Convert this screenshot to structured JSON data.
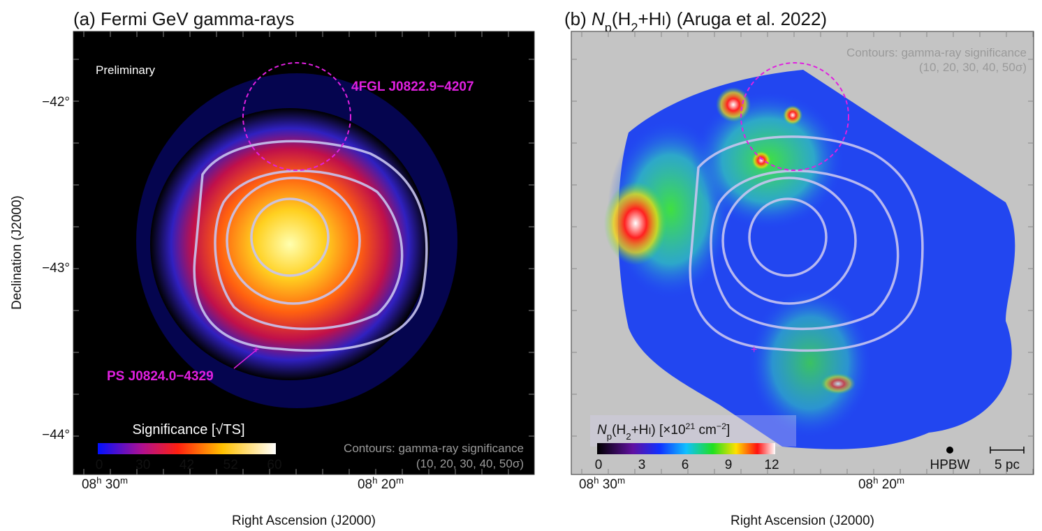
{
  "panels": [
    {
      "title": "(a) Fermi GeV gamma-rays",
      "watermark": "Preliminary",
      "sources": [
        "4FGL J0822.9−4207",
        "PS J0824.0−4329"
      ],
      "colorbar": {
        "title": "Significance [√TS]",
        "ticks": [
          "0",
          "30",
          "42",
          "52",
          "60"
        ]
      },
      "contour_note": [
        "Contours: gamma-ray significance",
        "(10, 20, 30, 40, 50σ)"
      ],
      "y_axis": {
        "label": "Declination (J2000)",
        "ticks": [
          "−42°",
          "−43°",
          "−44°"
        ]
      },
      "x_axis": {
        "label": "Right Ascension (J2000)",
        "ticks": [
          {
            "hours": "08",
            "h": "h",
            "minutes": "30",
            "m": "m"
          },
          {
            "hours": "08",
            "h": "h",
            "minutes": "20",
            "m": "m"
          }
        ]
      }
    },
    {
      "title_parts": [
        "(b) ",
        "N",
        "p",
        "(H",
        "2",
        "+H",
        "I",
        ") (Aruga et al. 2022)"
      ],
      "contour_note": [
        "Contours: gamma-ray significance",
        "(10, 20, 30, 40, 50σ)"
      ],
      "colorbar": {
        "title_parts": [
          "N",
          "p",
          "(H",
          "2",
          "+H",
          "I",
          ") [×10",
          "21",
          " cm",
          "−2",
          "]"
        ],
        "ticks": [
          "0",
          "3",
          "6",
          "9",
          "12"
        ]
      },
      "beam": "HPBW",
      "scale": "5 pc",
      "x_axis": {
        "label": "Right Ascension (J2000)",
        "ticks": [
          {
            "hours": "08",
            "h": "h",
            "minutes": "30",
            "m": "m"
          },
          {
            "hours": "08",
            "h": "h",
            "minutes": "20",
            "m": "m"
          }
        ]
      }
    }
  ]
}
